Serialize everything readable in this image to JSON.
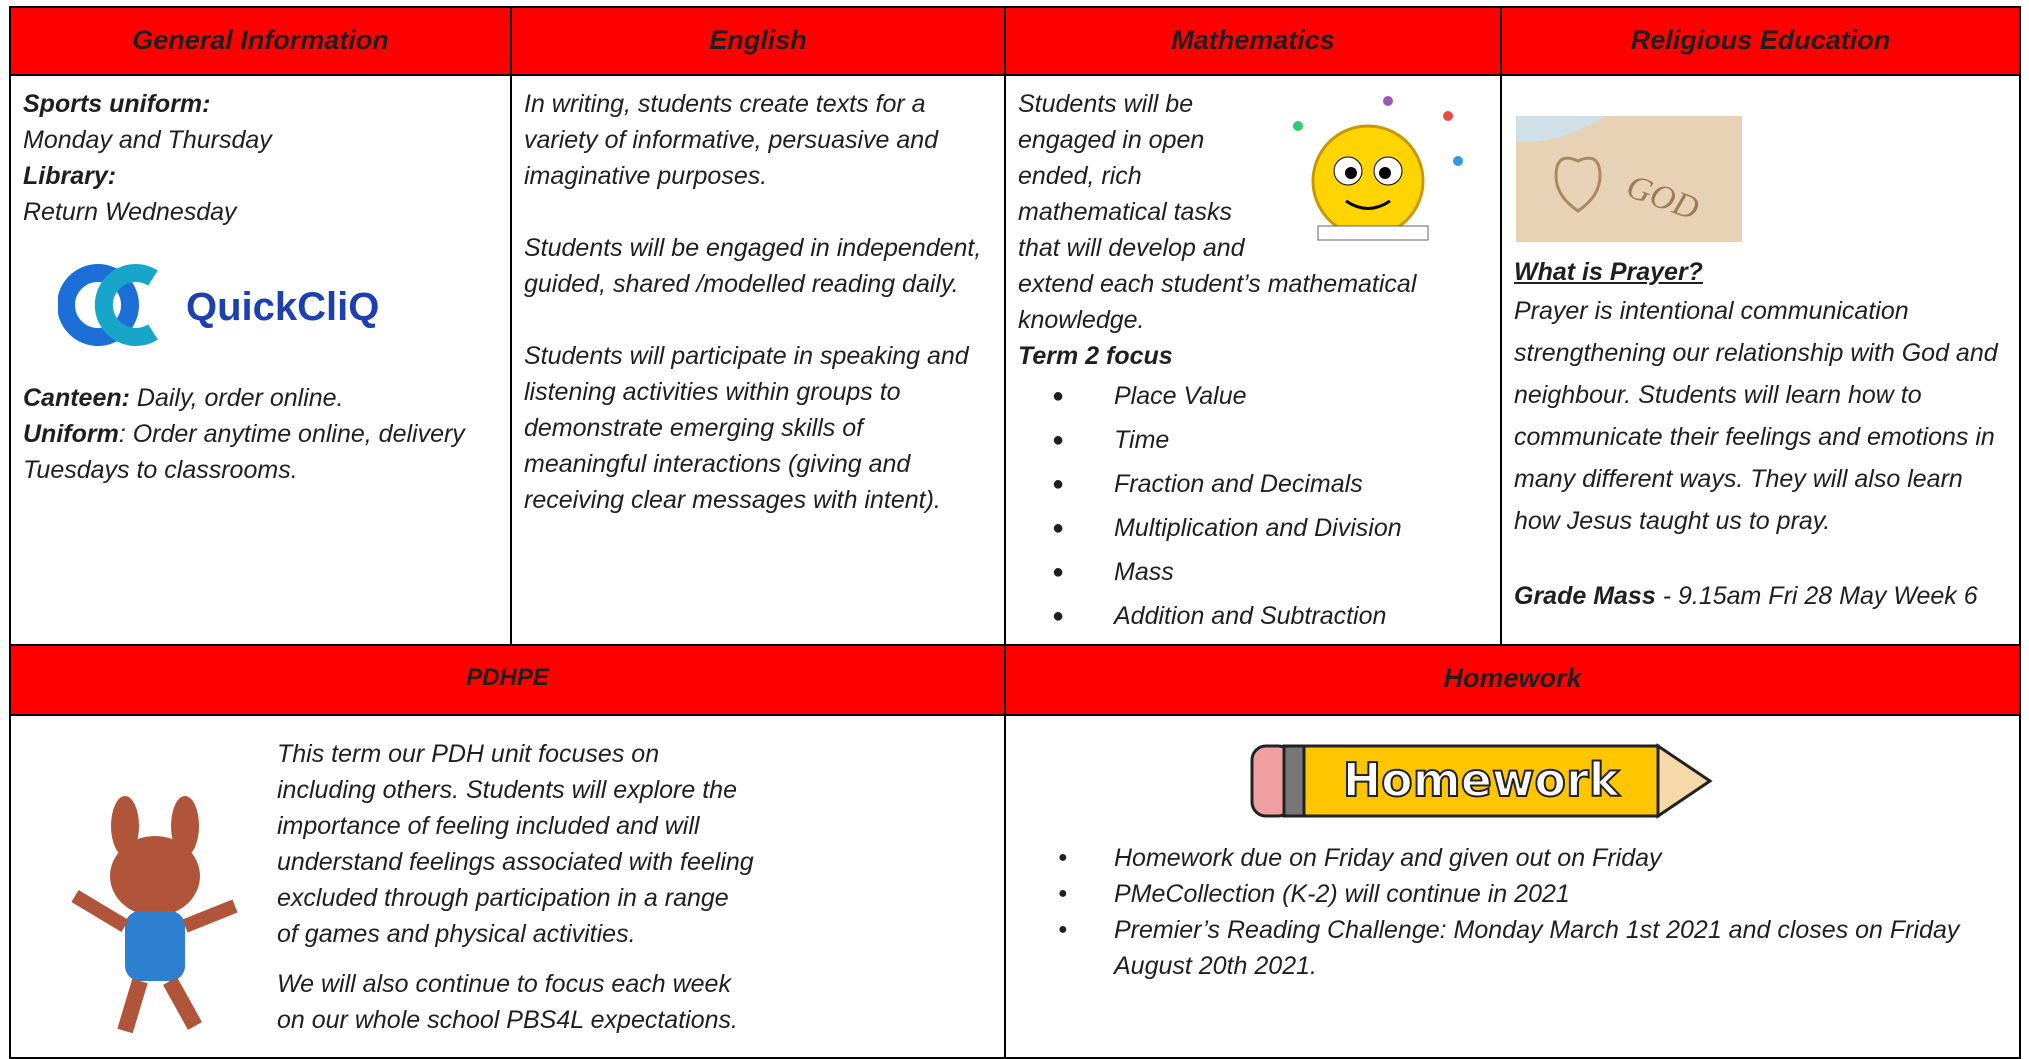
{
  "general": {
    "heading": "General Information",
    "items": [
      {
        "label": "Sports uniform:",
        "text": "Monday and Thursday"
      },
      {
        "label": "Library:",
        "text": "Return Wednesday"
      }
    ],
    "logo": "QuickCliQ",
    "canteen_label": "Canteen:",
    "canteen_text": "Daily, order online.",
    "uniform_label": "Uniform",
    "uniform_text": ": Order anytime online, delivery Tuesdays to classrooms."
  },
  "english": {
    "heading": "English",
    "paragraphs": [
      "In writing, students create texts for a variety of informative, persuasive and imaginative purposes.",
      "Students will be engaged in independent, guided, shared /modelled reading daily.",
      "Students will participate in speaking and listening activities within groups to demonstrate emerging skills of meaningful interactions (giving and receiving clear messages with intent)."
    ]
  },
  "mathematics": {
    "heading": "Mathematics",
    "intro": "Students will be engaged in open ended, rich mathematical tasks that will develop and extend each student’s mathematical knowledge.",
    "focus_label": "Term 2 focus",
    "focus": [
      "Place Value",
      "Time",
      "Fraction and Decimals",
      "Multiplication and Division",
      "Mass",
      "Addition and Subtraction"
    ]
  },
  "religious_education": {
    "heading": "Religious Education",
    "image_text": "GOD",
    "subheading": "What is Prayer?",
    "text": "Prayer is intentional communication strengthening our relationship with God and neighbour. Students will learn how to communicate their feelings and emotions in many different ways. They will also learn how Jesus taught us to pray.",
    "mass_label": "Grade Mass",
    "mass_text": "- 9.15am Fri 28 May Week 6"
  },
  "pdhpe": {
    "heading": "PDHPE",
    "paragraphs": [
      "This term our PDH unit focuses on including others.  Students will explore the importance of feeling included and will understand feelings associated with feeling excluded through participation in a range of games and physical activities.",
      "We will also continue to focus each week on our whole school PBS4L expectations."
    ]
  },
  "homework": {
    "heading": "Homework",
    "banner": "Homework",
    "items": [
      "Homework due on Friday and given out on Friday",
      "PMeCollection (K-2) will continue in 2021",
      "Premier’s Reading Challenge: Monday March 1st 2021 and closes on Friday August 20th 2021."
    ]
  }
}
